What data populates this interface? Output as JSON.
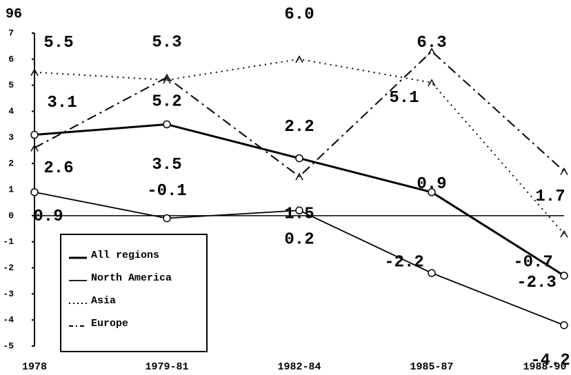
{
  "chart_data": {
    "type": "line",
    "ylabel": "96",
    "categories": [
      "1978",
      "1979-81",
      "1982-84",
      "1985-87",
      "1988-90"
    ],
    "ylim": [
      -5,
      7
    ],
    "yticks": [
      -5,
      -4,
      -3,
      -2,
      -1,
      0,
      1,
      2,
      3,
      4,
      5,
      6,
      7
    ],
    "series": [
      {
        "name": "All regions",
        "color": "#000000",
        "values": [
          3.1,
          3.5,
          2.2,
          0.9,
          -2.3
        ],
        "value_labels": [
          "3.1",
          "3.5",
          "2.2",
          "0.9",
          "-2.3"
        ]
      },
      {
        "name": "North America",
        "color": "#000000",
        "values": [
          0.9,
          -0.1,
          0.2,
          -2.2,
          -4.2
        ],
        "value_labels": [
          "0.9",
          "-0.1",
          "0.2",
          "-2.2",
          "-4.2"
        ]
      },
      {
        "name": "Asia",
        "color": "#000000",
        "values": [
          5.5,
          5.2,
          6.0,
          5.1,
          -0.7
        ],
        "value_labels": [
          "5.5",
          "5.2",
          "6.0",
          "5.1",
          "-0.7"
        ]
      },
      {
        "name": "Europe",
        "color": "#000000",
        "values": [
          2.6,
          5.3,
          1.5,
          6.3,
          1.7
        ],
        "value_labels": [
          "2.6",
          "5.3",
          "1.5",
          "6.3",
          "1.7"
        ]
      }
    ]
  }
}
